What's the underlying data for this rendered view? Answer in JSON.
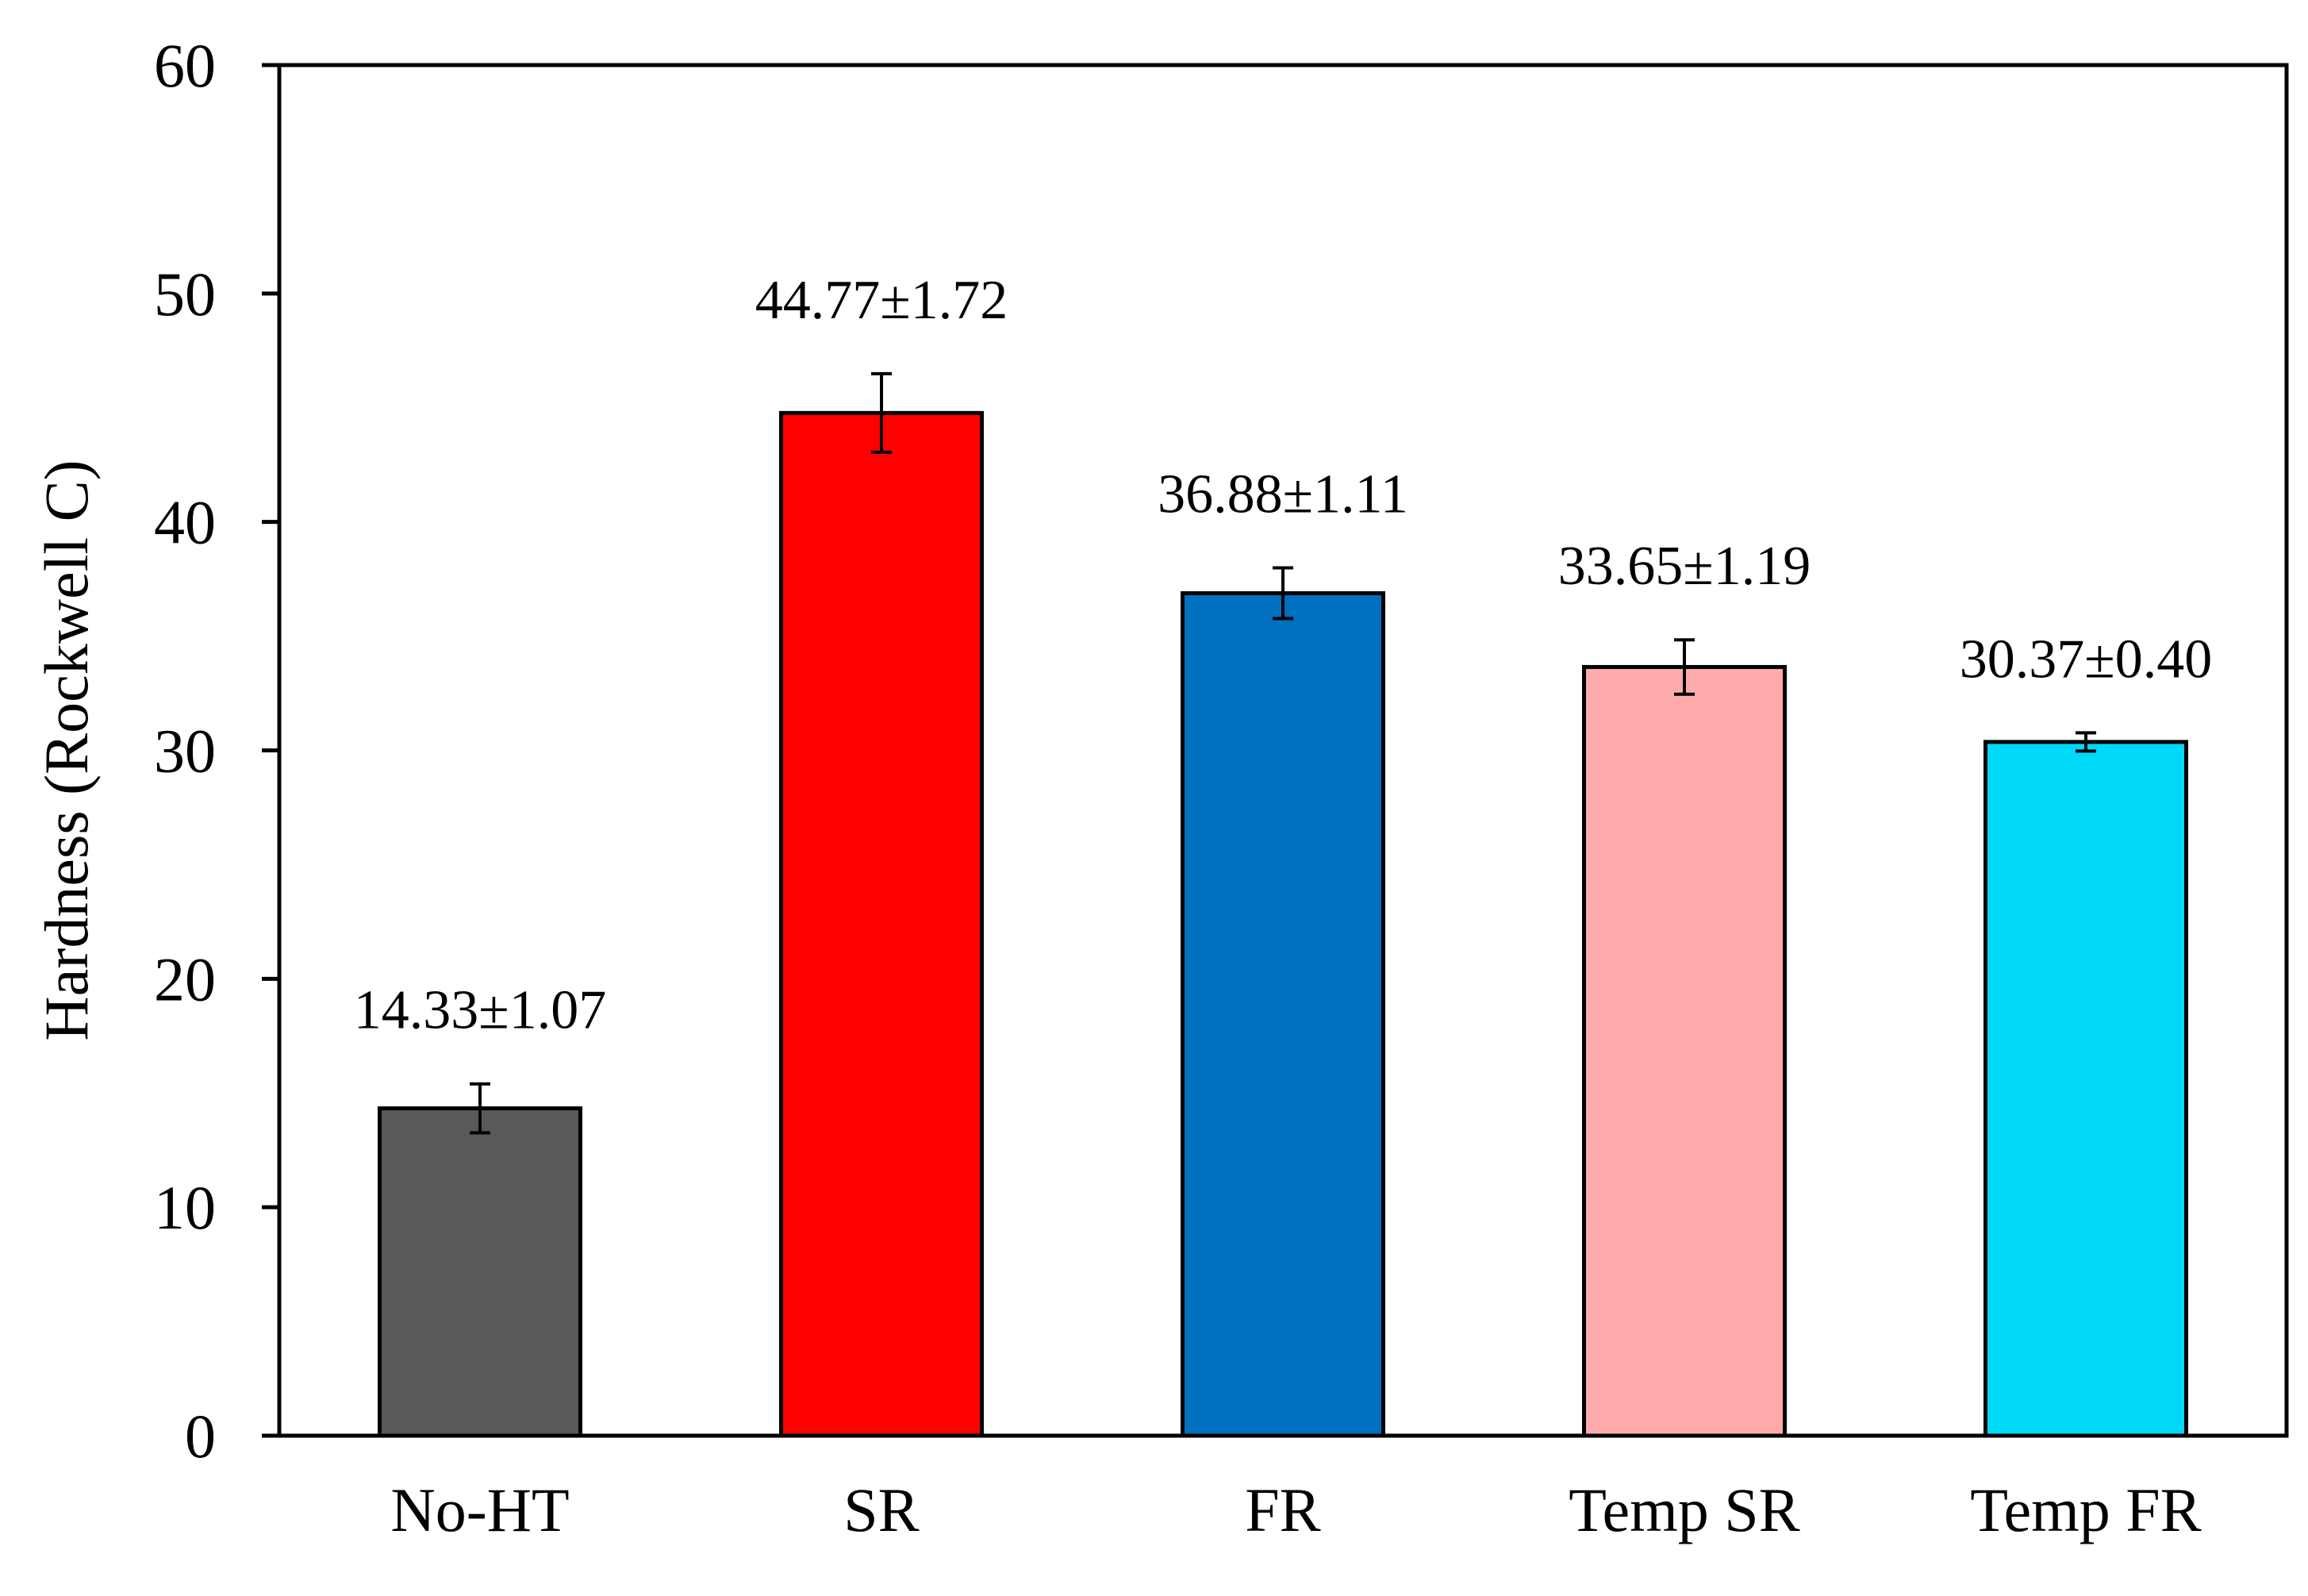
{
  "chart_data": {
    "type": "bar",
    "title": "",
    "xlabel": "",
    "ylabel": "Hardness (Rockwell C)",
    "ylim": [
      0,
      60
    ],
    "yticks": [
      0,
      10,
      20,
      30,
      40,
      50,
      60
    ],
    "ytick_labels": [
      "0",
      "10",
      "20",
      "30",
      "40",
      "50",
      "60"
    ],
    "categories": [
      "No-HT",
      "SR",
      "FR",
      "Temp SR",
      "Temp FR"
    ],
    "values": [
      14.33,
      44.77,
      36.88,
      33.65,
      30.37
    ],
    "errors": [
      1.07,
      1.72,
      1.11,
      1.19,
      0.4
    ],
    "data_labels": [
      "14.33±1.07",
      "44.77±1.72",
      "36.88±1.11",
      "33.65±1.19",
      "30.37±0.40"
    ],
    "colors": [
      "#595959",
      "#ff0000",
      "#0070c0",
      "#ffabab",
      "#00d8f8"
    ],
    "grid": false,
    "legend": "none"
  }
}
